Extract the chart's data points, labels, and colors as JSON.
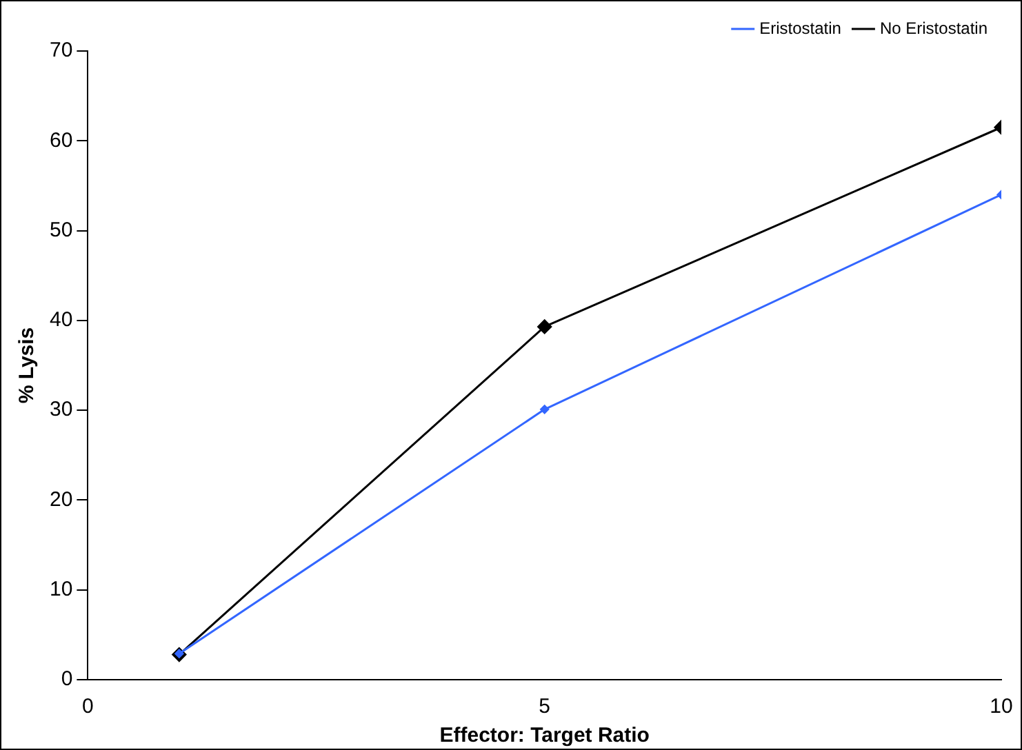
{
  "chart_data": {
    "type": "line",
    "xlabel": "Effector: Target Ratio",
    "ylabel": "% Lysis",
    "x": [
      1,
      5,
      10
    ],
    "series": [
      {
        "name": "No Eristostatin",
        "color": "#000000",
        "values": [
          2.8,
          39.3,
          61.5
        ]
      },
      {
        "name": "Eristostatin",
        "color": "#3366ff",
        "values": [
          2.9,
          30.1,
          54
        ]
      }
    ],
    "xlim": [
      0,
      10
    ],
    "xticks": [
      0,
      5,
      10
    ],
    "ylim": [
      0,
      70
    ],
    "yticks": [
      0,
      10,
      20,
      30,
      40,
      50,
      60,
      70
    ],
    "grid": false,
    "legend": "top right",
    "marker": "diamond",
    "line_style": "solid"
  }
}
